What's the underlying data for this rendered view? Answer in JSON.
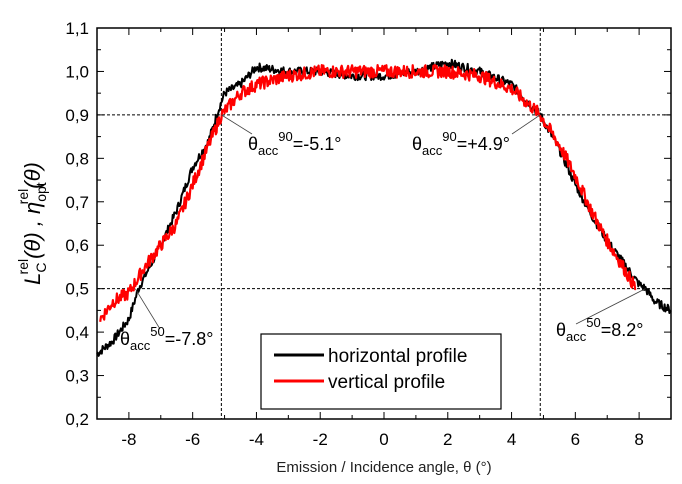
{
  "chart_data": {
    "type": "line",
    "xlabel": "Emission / Incidence angle, θ (°)",
    "ylabel": {
      "part1_main": "L",
      "part1_sub": "C",
      "part1_sup": "rel",
      "part1_arg": "(θ) ,",
      "part2_main": "η",
      "part2_sub": "opt",
      "part2_sup": "rel",
      "part2_arg": "(θ)"
    },
    "xlim": [
      -9,
      9
    ],
    "ylim": [
      0.2,
      1.1
    ],
    "xticks": [
      -8,
      -6,
      -4,
      -2,
      0,
      2,
      4,
      6,
      8
    ],
    "xtick_labels": [
      "-8",
      "-6",
      "-4",
      "-2",
      "0",
      "2",
      "4",
      "6",
      "8"
    ],
    "yticks": [
      0.2,
      0.3,
      0.4,
      0.5,
      0.6,
      0.7,
      0.8,
      0.9,
      1.0,
      1.1
    ],
    "ytick_labels": [
      "0,2",
      "0,3",
      "0,4",
      "0,5",
      "0,6",
      "0,7",
      "0,8",
      "0,9",
      "1,0",
      "1,1"
    ],
    "grid": false,
    "legend_position": "bottom-center",
    "series": [
      {
        "name": "horizontal profile",
        "color": "#000000",
        "x": [
          -9,
          -8.5,
          -8,
          -7.7,
          -7,
          -6.5,
          -6,
          -5.5,
          -5.2,
          -5,
          -4.5,
          -4,
          -3,
          -2,
          -1,
          0,
          1,
          2,
          3,
          4,
          4.9,
          5.5,
          6,
          6.5,
          7,
          7.5,
          8,
          8.2,
          8.5,
          9
        ],
        "y": [
          0.35,
          0.38,
          0.43,
          0.5,
          0.6,
          0.68,
          0.78,
          0.84,
          0.91,
          0.95,
          0.97,
          1.01,
          1.0,
          1.0,
          0.99,
          0.99,
          1.0,
          1.02,
          1.0,
          0.97,
          0.9,
          0.82,
          0.74,
          0.67,
          0.61,
          0.56,
          0.51,
          0.5,
          0.47,
          0.45
        ]
      },
      {
        "name": "vertical profile",
        "color": "#ff0000",
        "x": [
          -8.9,
          -8.5,
          -8,
          -7.5,
          -7,
          -6.5,
          -6,
          -5.5,
          -5.1,
          -4.5,
          -4,
          -3,
          -2,
          -1,
          0,
          1,
          2,
          3,
          4,
          4.9,
          5.5,
          6,
          6.5,
          7,
          7.5,
          7.9
        ],
        "y": [
          0.43,
          0.47,
          0.49,
          0.55,
          0.6,
          0.65,
          0.74,
          0.83,
          0.9,
          0.95,
          0.97,
          0.99,
          1.0,
          1.0,
          1.0,
          1.0,
          1.0,
          0.99,
          0.96,
          0.9,
          0.83,
          0.76,
          0.68,
          0.61,
          0.55,
          0.5
        ]
      }
    ],
    "reference_lines": {
      "x": [
        -5.1,
        4.9
      ],
      "y": [
        0.9,
        0.5
      ]
    },
    "annotations": [
      {
        "sym": "θ",
        "sub": "acc",
        "sup": "90",
        "val": "=-5.1°",
        "x": -5.1,
        "y": 0.9
      },
      {
        "sym": "θ",
        "sub": "acc",
        "sup": "90",
        "val": "=+4.9°",
        "x": 4.9,
        "y": 0.9
      },
      {
        "sym": "θ",
        "sub": "acc",
        "sup": "50",
        "val": "=-7.8°",
        "x": -7.8,
        "y": 0.5
      },
      {
        "sym": "θ",
        "sub": "acc",
        "sup": "50",
        "val": "=8.2°",
        "x": 8.2,
        "y": 0.5
      }
    ]
  }
}
